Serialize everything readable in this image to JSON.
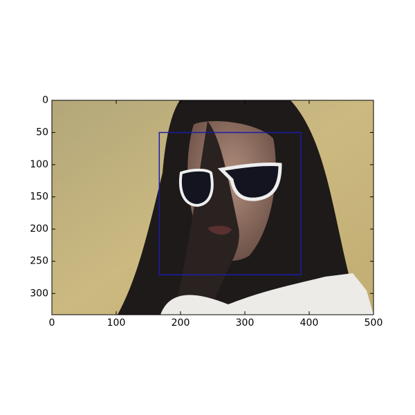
{
  "chart_data": {
    "type": "image",
    "xlim": [
      0,
      500
    ],
    "ylim": [
      333,
      0
    ],
    "xticks": [
      0,
      100,
      200,
      300,
      400,
      500
    ],
    "yticks": [
      0,
      50,
      100,
      150,
      200,
      250,
      300
    ],
    "boxes": [
      {
        "x0": 167,
        "y0": 50,
        "x1": 387,
        "y1": 271,
        "color": "#1c1ca8"
      }
    ]
  }
}
